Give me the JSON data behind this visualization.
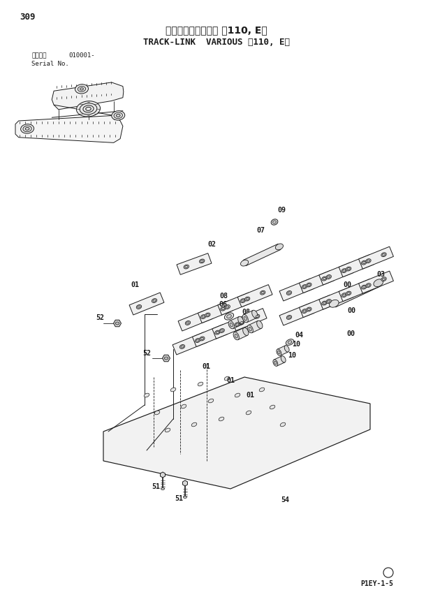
{
  "page_number": "309",
  "title_japanese": "トラックリンク各種 ＜110, E＞",
  "title_english": "TRACK-LINK  VARIOUS 〈110, E〉",
  "serial_label_japanese": "適用号機",
  "serial_label_english": "Serial No.",
  "serial_number": "010001-",
  "footer_code": "P1EY-1-5",
  "bg_color": "#ffffff",
  "text_color": "#1a1a1a"
}
